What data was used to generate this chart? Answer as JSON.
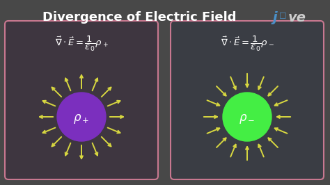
{
  "title": "Divergence of Electric Field",
  "bg_color": "#484848",
  "box1_color": "#3e3640",
  "box2_color": "#3a3d44",
  "box_border_color": "#c87890",
  "title_color": "#ffffff",
  "arrow_color": "#d8d840",
  "circle1_color": "#7b2fbe",
  "circle2_color": "#44ee44",
  "jove_j_color": "#4a90c8",
  "jove_ove_color": "#cccccc",
  "n_arrows": 16,
  "figsize": [
    4.74,
    2.66
  ],
  "dpi": 100
}
